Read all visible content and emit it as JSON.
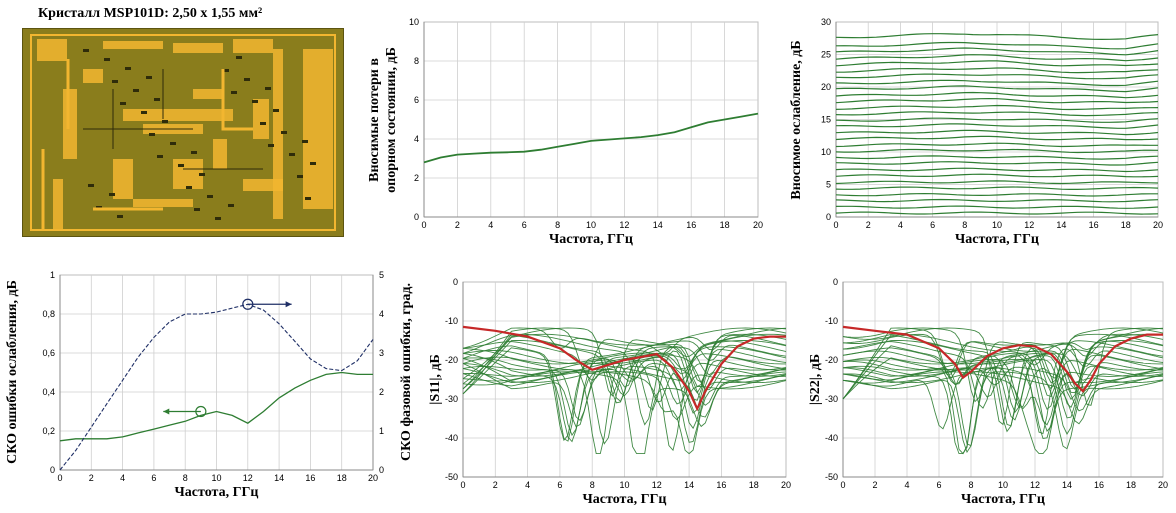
{
  "chip": {
    "title": "Кристалл MSP101D: 2,50 x 1,55 мм²",
    "colors": {
      "substrate": "#8a7d1c",
      "metal": "#f2b630",
      "dark": "#2f2c0a"
    }
  },
  "chart_data": [
    {
      "id": "insertion-loss",
      "type": "line",
      "xlabel": "Частота, ГГц",
      "ylabel": "Вносимые потери в опорном состоянии, дБ",
      "xlim": [
        0,
        20
      ],
      "ylim": [
        0,
        10
      ],
      "xticks": [
        0,
        2,
        4,
        6,
        8,
        10,
        12,
        14,
        16,
        18,
        20
      ],
      "yticks": [
        0,
        2,
        4,
        6,
        8,
        10
      ],
      "grid": true,
      "series": [
        {
          "color": "#2e7d32",
          "x": [
            0,
            1,
            2,
            3,
            4,
            5,
            6,
            7,
            8,
            9,
            10,
            11,
            12,
            13,
            14,
            15,
            16,
            17,
            18,
            19,
            20
          ],
          "y": [
            2.8,
            3.05,
            3.2,
            3.25,
            3.3,
            3.32,
            3.35,
            3.45,
            3.6,
            3.75,
            3.9,
            3.97,
            4.03,
            4.1,
            4.2,
            4.35,
            4.6,
            4.85,
            5.0,
            5.15,
            5.3
          ]
        }
      ]
    },
    {
      "id": "attenuation",
      "type": "line",
      "xlabel": "Частота, ГГц",
      "ylabel": "Вносимое ослабление, дБ",
      "xlim": [
        0,
        20
      ],
      "ylim": [
        0,
        30
      ],
      "xticks": [
        0,
        2,
        4,
        6,
        8,
        10,
        12,
        14,
        16,
        18,
        20
      ],
      "yticks": [
        0,
        5,
        10,
        15,
        20,
        25,
        30
      ],
      "grid": true,
      "series_color": "#2e7d32",
      "states_base": [
        0.6,
        1.5,
        2.5,
        3.4,
        4.4,
        5.3,
        6.3,
        7.2,
        8.2,
        9.1,
        10.1,
        11.0,
        12.0,
        12.9,
        13.9,
        14.8,
        15.8,
        16.7,
        17.7,
        18.6,
        19.6,
        20.5,
        21.5,
        22.4,
        23.4,
        24.3,
        25.3,
        26.2,
        27.6
      ],
      "states_shape_x": [
        0,
        4,
        8,
        10,
        14,
        18,
        20
      ],
      "states_shape_f": [
        0,
        0.012,
        0.022,
        0.02,
        0.0,
        -0.008,
        0.012
      ]
    },
    {
      "id": "rms-error",
      "type": "line",
      "xlabel": "Частота, ГГц",
      "ylabel": "СКО ошибки ослабления, дБ",
      "y2label": "СКО фазовой ошибки, град.",
      "xlim": [
        0,
        20
      ],
      "ylim": [
        0,
        1
      ],
      "y2lim": [
        0,
        5
      ],
      "xticks": [
        0,
        2,
        4,
        6,
        8,
        10,
        12,
        14,
        16,
        18,
        20
      ],
      "yticks": [
        0,
        0.2,
        0.4,
        0.6,
        0.8,
        1
      ],
      "y2ticks": [
        0,
        1,
        2,
        3,
        4,
        5
      ],
      "grid": true,
      "series": [
        {
          "axis": "left",
          "color": "#2e7d32",
          "x": [
            0,
            1,
            2,
            3,
            4,
            5,
            6,
            7,
            8,
            9,
            10,
            11,
            12,
            13,
            14,
            15,
            16,
            17,
            18,
            19,
            20
          ],
          "y": [
            0.15,
            0.16,
            0.16,
            0.16,
            0.17,
            0.19,
            0.21,
            0.23,
            0.25,
            0.28,
            0.3,
            0.28,
            0.24,
            0.3,
            0.37,
            0.42,
            0.46,
            0.49,
            0.5,
            0.49,
            0.49
          ]
        },
        {
          "axis": "right",
          "color": "#1f2f66",
          "dashed": true,
          "x": [
            0,
            1,
            2,
            3,
            4,
            5,
            6,
            7,
            8,
            9,
            10,
            11,
            12,
            13,
            14,
            15,
            16,
            17,
            18,
            19,
            20
          ],
          "y": [
            0.0,
            0.5,
            1.1,
            1.7,
            2.3,
            2.9,
            3.4,
            3.8,
            4.0,
            4.0,
            4.05,
            4.15,
            4.25,
            4.1,
            3.75,
            3.3,
            2.85,
            2.6,
            2.55,
            2.8,
            3.35
          ]
        }
      ],
      "markers": [
        {
          "x": 12,
          "y": 0.85,
          "arrow_to_x": 14.8,
          "color": "#1f2f66"
        },
        {
          "x": 9,
          "y": 0.3,
          "arrow_to_x": 6.6,
          "color": "#2e7d32"
        }
      ]
    },
    {
      "id": "s11",
      "type": "line",
      "xlabel": "Частота, ГГц",
      "ylabel": "|S11|, дБ",
      "xlim": [
        0,
        20
      ],
      "ylim": [
        -50,
        0
      ],
      "xticks": [
        0,
        2,
        4,
        6,
        8,
        10,
        12,
        14,
        16,
        18,
        20
      ],
      "yticks": [
        0,
        -10,
        -20,
        -30,
        -40,
        -50
      ],
      "grid": true,
      "ref_series": {
        "color": "#c62828",
        "x": [
          0,
          2,
          4,
          6,
          7,
          8,
          10,
          12,
          13,
          14,
          14.5,
          15,
          16,
          17,
          18,
          19,
          20
        ],
        "y": [
          -11.5,
          -12.5,
          -14,
          -17,
          -20,
          -22.5,
          -20,
          -18.5,
          -22,
          -28,
          -32.5,
          -28,
          -21,
          -16.5,
          -14.5,
          -14,
          -14
        ]
      },
      "family_color": "#2e7d32",
      "family_count": 24
    },
    {
      "id": "s22",
      "type": "line",
      "xlabel": "Частота, ГГц",
      "ylabel": "|S22|, дБ",
      "xlim": [
        0,
        20
      ],
      "ylim": [
        -50,
        0
      ],
      "xticks": [
        0,
        2,
        4,
        6,
        8,
        10,
        12,
        14,
        16,
        18,
        20
      ],
      "yticks": [
        0,
        -10,
        -20,
        -30,
        -40,
        -50
      ],
      "grid": true,
      "ref_series": {
        "color": "#c62828",
        "x": [
          0,
          2,
          4,
          6,
          7,
          7.5,
          8,
          9,
          10,
          11,
          12,
          13,
          14,
          14.5,
          15,
          15.5,
          16,
          17,
          18,
          19,
          20
        ],
        "y": [
          -11.5,
          -12.5,
          -13.5,
          -17,
          -21,
          -24.5,
          -23,
          -19,
          -17,
          -16.2,
          -16.5,
          -18.5,
          -23,
          -26,
          -28,
          -25,
          -21,
          -16.5,
          -14.5,
          -13.5,
          -13.5
        ]
      },
      "family_color": "#2e7d32",
      "family_count": 24
    }
  ]
}
